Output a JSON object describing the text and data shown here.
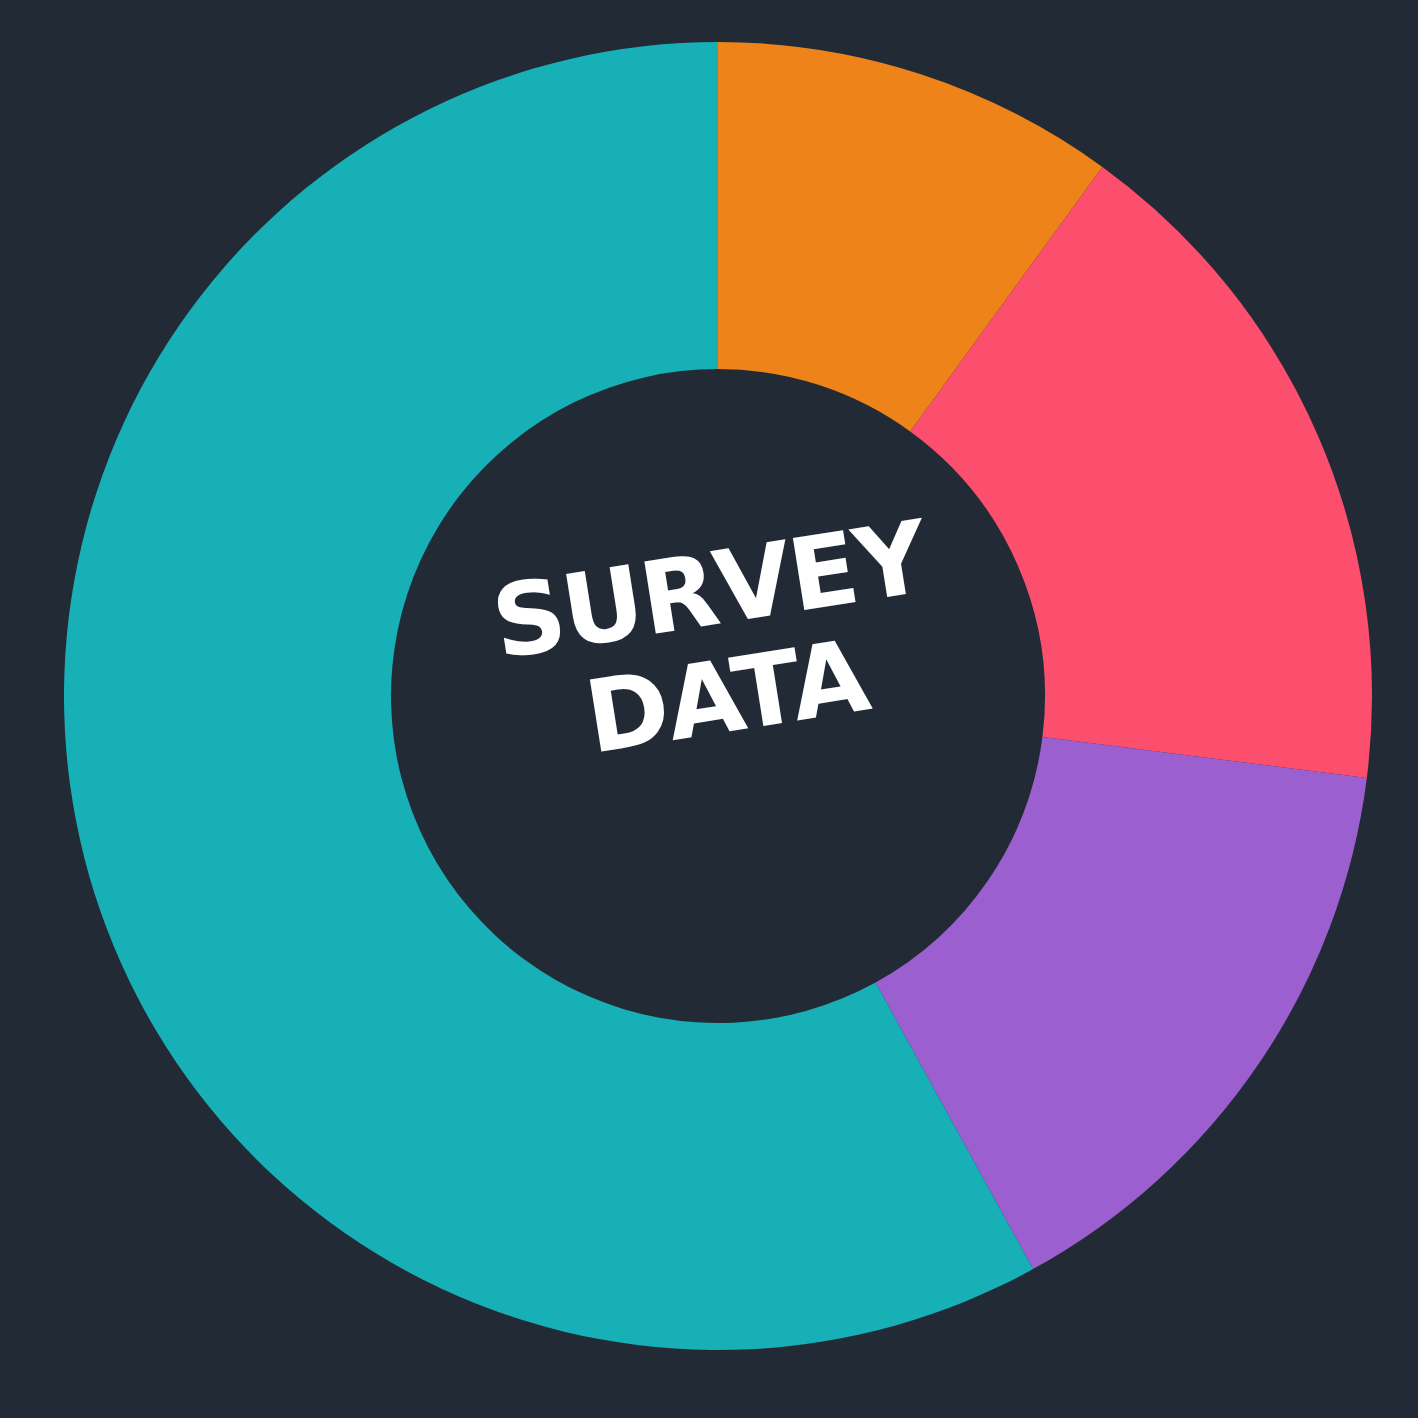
{
  "chart_data": {
    "type": "donut",
    "title": "SURVEY DATA",
    "categories": [
      null,
      null,
      null,
      null
    ],
    "values": [
      10,
      17,
      15,
      58
    ],
    "colors": [
      "#ee8419",
      "#fc4f6d",
      "#9c5fd0",
      "#17b0b7"
    ],
    "legend": false
  }
}
